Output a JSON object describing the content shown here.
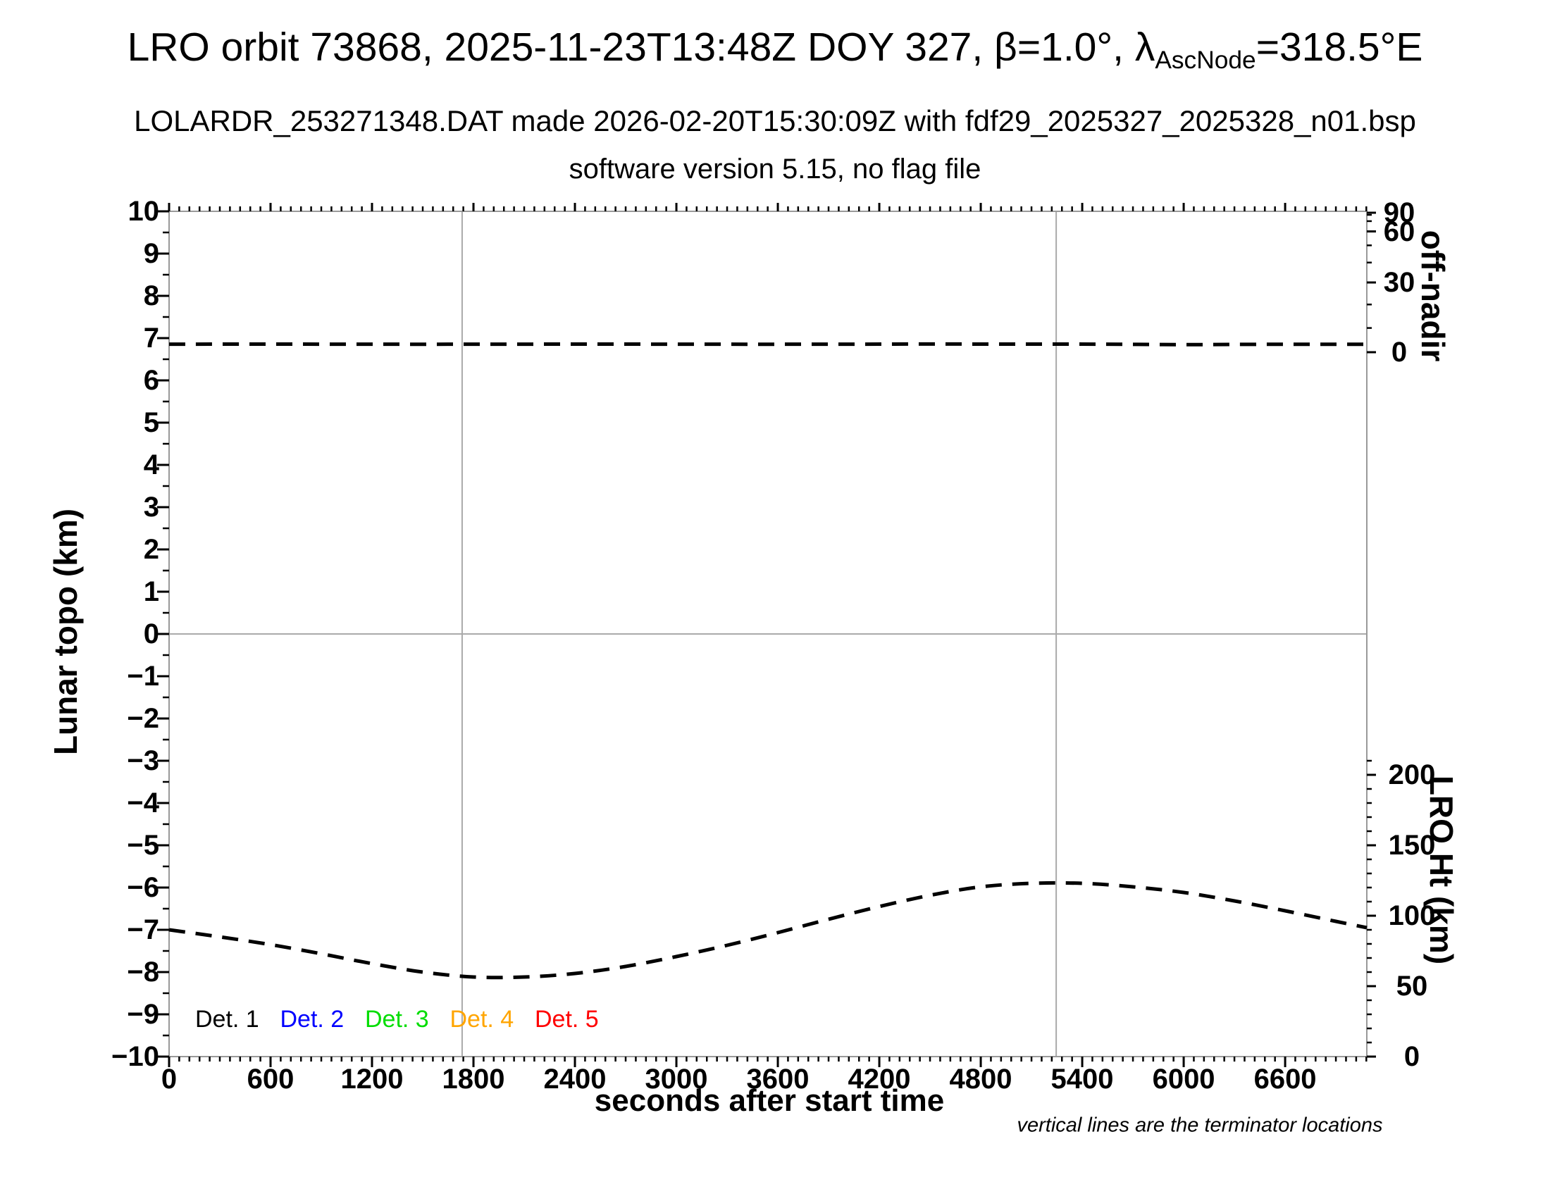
{
  "header": {
    "title_prefix": "LRO orbit 73868, 2025-11-23T13:48Z DOY 327, β=1.0°, λ",
    "title_subscript": "AscNode",
    "title_suffix": "=318.5°E",
    "subtitle": "LOLARDR_253271348.DAT made 2026-02-20T15:30:09Z with fdf29_2025327_2025328_n01.bsp",
    "subtitle2": "software version 5.15, no flag file"
  },
  "footnote": "vertical lines are the terminator locations",
  "legend": {
    "items": [
      {
        "label": "Det. 1",
        "color": "#000000"
      },
      {
        "label": "Det. 2",
        "color": "#0000ff"
      },
      {
        "label": "Det. 3",
        "color": "#00dd00"
      },
      {
        "label": "Det. 4",
        "color": "#ffa500"
      },
      {
        "label": "Det. 5",
        "color": "#ff0000"
      }
    ]
  },
  "chart_data": {
    "type": "line",
    "xlabel": "seconds after start time",
    "ylabel_left": "Lunar topo (km)",
    "ylabel_right_upper": "off-nadir",
    "ylabel_right_lower": "LRO Ht (km)",
    "x_range_s": [
      0,
      7083
    ],
    "x_major_ticks": [
      0,
      600,
      1200,
      1800,
      2400,
      3000,
      3600,
      4200,
      4800,
      5400,
      6000,
      6600
    ],
    "x_minor_step_s": 60,
    "y_left_range_km": [
      -10,
      10
    ],
    "y_left_major_step": 1,
    "y_left_minor_step": 0.5,
    "off_nadir_axis_deg": {
      "scale": "sine",
      "major_ticks": [
        0,
        30,
        60,
        90
      ],
      "minor_ticks": [
        10,
        20,
        40,
        50,
        70,
        80
      ]
    },
    "lro_ht_axis_km": {
      "major_ticks": [
        0,
        50,
        100,
        150,
        200
      ],
      "minor_step": 10,
      "minor_max": 210
    },
    "terminator_lines_s": [
      1733,
      5246
    ],
    "zero_topo_gridline": true,
    "grid_color": "#aaaaaa",
    "frame_color": "#999999",
    "curve_color": "#000000",
    "curve_style": "dashed",
    "series": [
      {
        "name": "off-nadir angle",
        "units": "deg",
        "axis": "off_nadir",
        "points": [
          [
            0,
            3.3
          ],
          [
            500,
            3.32
          ],
          [
            1000,
            3.3
          ],
          [
            1500,
            3.28
          ],
          [
            2000,
            3.3
          ],
          [
            2500,
            3.32
          ],
          [
            3000,
            3.3
          ],
          [
            3500,
            3.28
          ],
          [
            4000,
            3.3
          ],
          [
            4500,
            3.35
          ],
          [
            5000,
            3.33
          ],
          [
            5500,
            3.3
          ],
          [
            6000,
            3.12
          ],
          [
            6500,
            3.25
          ],
          [
            7083,
            3.25
          ]
        ]
      },
      {
        "name": "LRO height",
        "units": "km",
        "axis": "lro_ht",
        "points": [
          [
            0,
            90
          ],
          [
            300,
            85
          ],
          [
            600,
            79.5
          ],
          [
            900,
            73
          ],
          [
            1200,
            66
          ],
          [
            1500,
            60
          ],
          [
            1800,
            56.5
          ],
          [
            2100,
            56.5
          ],
          [
            2400,
            59
          ],
          [
            2700,
            64
          ],
          [
            3000,
            71
          ],
          [
            3300,
            79
          ],
          [
            3600,
            88
          ],
          [
            3900,
            97.5
          ],
          [
            4200,
            106.5
          ],
          [
            4500,
            114.5
          ],
          [
            4800,
            120.5
          ],
          [
            5100,
            123
          ],
          [
            5400,
            123
          ],
          [
            5700,
            120.5
          ],
          [
            6000,
            116.5
          ],
          [
            6300,
            110.5
          ],
          [
            6600,
            103.5
          ],
          [
            6900,
            96
          ],
          [
            7083,
            91.5
          ]
        ]
      }
    ]
  }
}
